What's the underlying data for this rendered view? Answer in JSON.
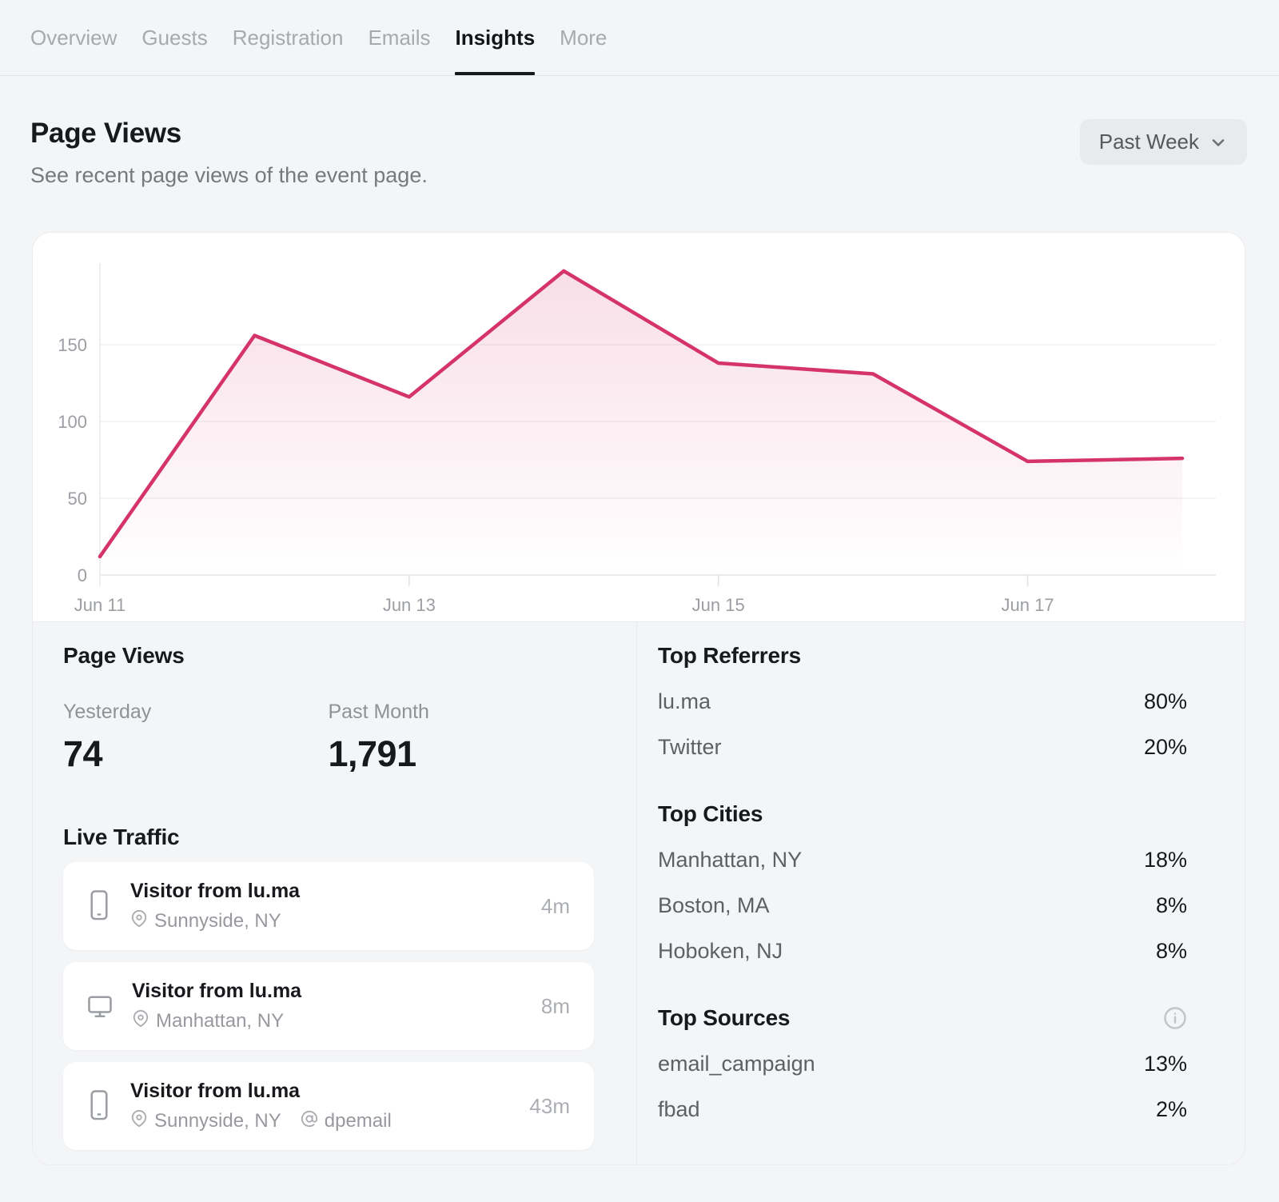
{
  "nav": {
    "tabs": [
      {
        "label": "Overview",
        "active": false
      },
      {
        "label": "Guests",
        "active": false
      },
      {
        "label": "Registration",
        "active": false
      },
      {
        "label": "Emails",
        "active": false
      },
      {
        "label": "Insights",
        "active": true
      },
      {
        "label": "More",
        "active": false
      }
    ]
  },
  "header": {
    "title": "Page Views",
    "subtitle": "See recent page views of the event page.",
    "range_button": "Past Week"
  },
  "chart_data": {
    "type": "area",
    "title": "Page Views",
    "x": [
      "Jun 11",
      "Jun 12",
      "Jun 13",
      "Jun 14",
      "Jun 15",
      "Jun 16",
      "Jun 17",
      "Jun 18"
    ],
    "values": [
      12,
      156,
      116,
      198,
      138,
      131,
      74,
      76
    ],
    "x_tick_labels": [
      "Jun 11",
      "Jun 13",
      "Jun 15",
      "Jun 17"
    ],
    "y_ticks": [
      0,
      50,
      100,
      150
    ],
    "ylim": [
      0,
      200
    ],
    "grid": true,
    "legend": "none",
    "line_color": "#d5336b",
    "fill_top": "rgba(213,51,107,0.16)",
    "fill_bottom": "rgba(213,51,107,0)"
  },
  "stats": {
    "title": "Page Views",
    "items": [
      {
        "label": "Yesterday",
        "value": "74"
      },
      {
        "label": "Past Month",
        "value": "1,791"
      }
    ]
  },
  "live_traffic": {
    "title": "Live Traffic",
    "items": [
      {
        "title": "Visitor from lu.ma",
        "device": "mobile",
        "location": "Sunnyside, NY",
        "time": "4m"
      },
      {
        "title": "Visitor from lu.ma",
        "device": "desktop",
        "location": "Manhattan, NY",
        "time": "8m"
      },
      {
        "title": "Visitor from lu.ma",
        "device": "mobile",
        "location": "Sunnyside, NY",
        "source": "dpemail",
        "time": "43m"
      }
    ]
  },
  "top_referrers": {
    "title": "Top Referrers",
    "rows": [
      {
        "label": "lu.ma",
        "value": "80%"
      },
      {
        "label": "Twitter",
        "value": "20%"
      }
    ]
  },
  "top_cities": {
    "title": "Top Cities",
    "rows": [
      {
        "label": "Manhattan, NY",
        "value": "18%"
      },
      {
        "label": "Boston, MA",
        "value": "8%"
      },
      {
        "label": "Hoboken, NJ",
        "value": "8%"
      }
    ]
  },
  "top_sources": {
    "title": "Top Sources",
    "rows": [
      {
        "label": "email_campaign",
        "value": "13%"
      },
      {
        "label": "fbad",
        "value": "2%"
      }
    ]
  }
}
